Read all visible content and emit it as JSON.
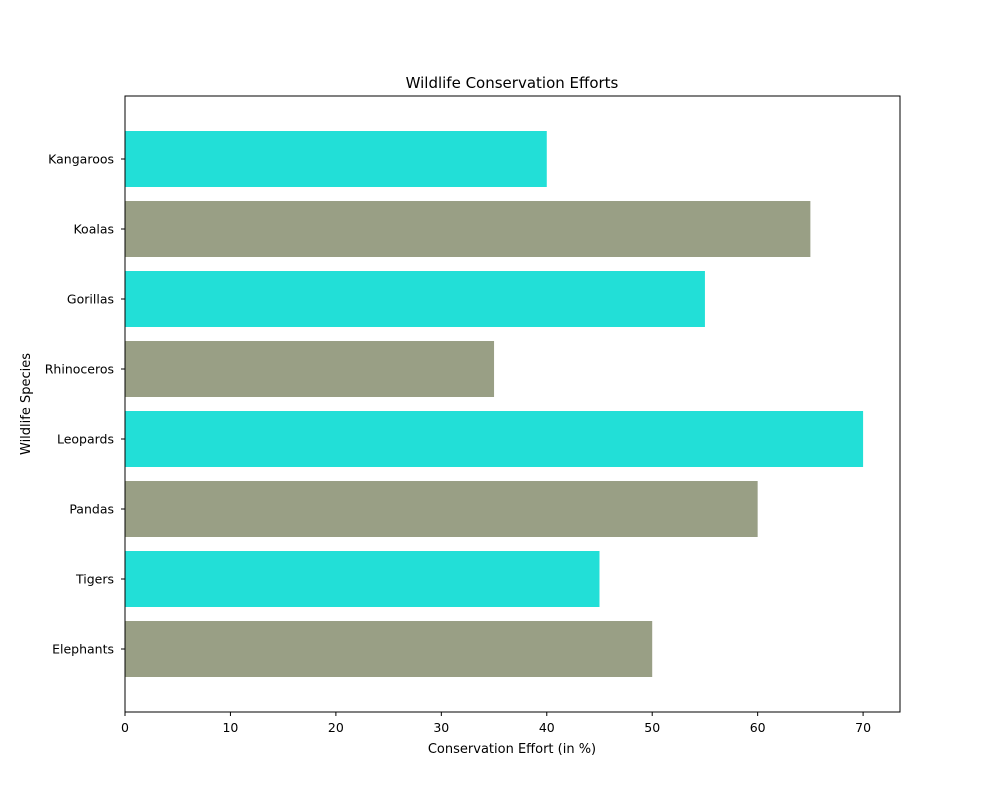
{
  "chart_data": {
    "type": "bar",
    "orientation": "horizontal",
    "title": "Wildlife Conservation Efforts",
    "xlabel": "Conservation Effort (in %)",
    "ylabel": "Wildlife Species",
    "categories": [
      "Elephants",
      "Tigers",
      "Pandas",
      "Leopards",
      "Rhinoceros",
      "Gorillas",
      "Koalas",
      "Kangaroos"
    ],
    "values": [
      50,
      45,
      60,
      70,
      35,
      55,
      65,
      40
    ],
    "bar_colors": [
      "#999f85",
      "#22dfd7",
      "#999f85",
      "#22dfd7",
      "#999f85",
      "#22dfd7",
      "#999f85",
      "#22dfd7"
    ],
    "xlim": [
      0,
      73.5
    ],
    "xticks": [
      0,
      10,
      20,
      30,
      40,
      50,
      60,
      70
    ],
    "grid": false,
    "legend": "none"
  }
}
